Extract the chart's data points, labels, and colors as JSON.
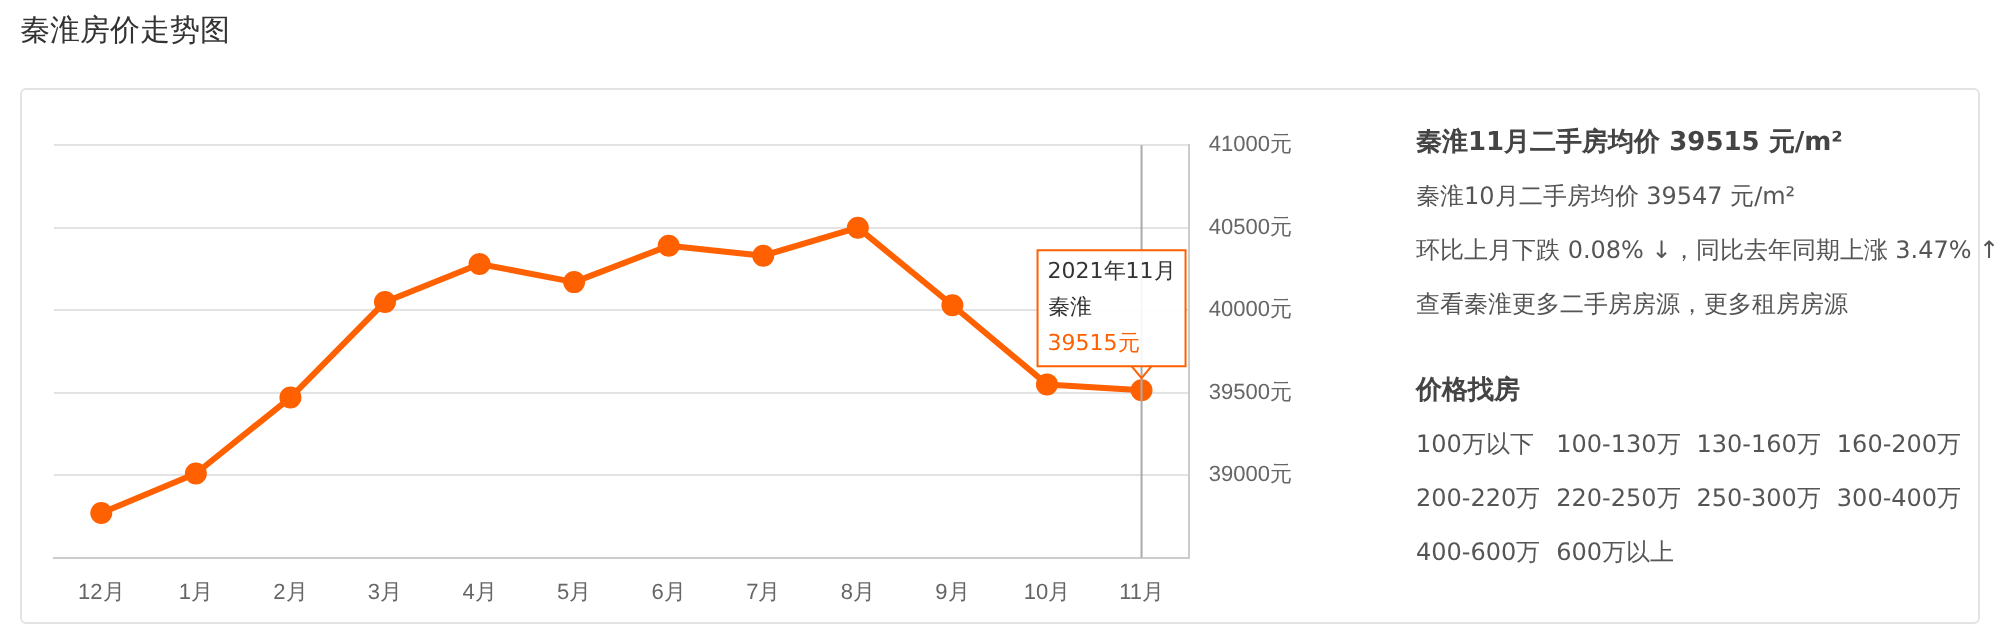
{
  "chart_data": [
    {
      "type": "line",
      "title": "秦淮房价走势图",
      "categories": [
        "12月",
        "1月",
        "2月",
        "3月",
        "4月",
        "5月",
        "6月",
        "7月",
        "8月",
        "9月",
        "10月",
        "11月"
      ],
      "series": [
        {
          "name": "秦淮",
          "color": "#ff6000",
          "values": [
            38770,
            39010,
            39470,
            40050,
            40280,
            40170,
            40390,
            40330,
            40500,
            40030,
            39550,
            39515
          ],
          "value_labels": [
            null,
            null,
            null,
            null,
            null,
            null,
            null,
            null,
            null,
            null,
            null,
            "39515元"
          ]
        }
      ],
      "ylim": [
        38500,
        41000
      ],
      "yticks": [
        {
          "value": 39000,
          "label": "39000元"
        },
        {
          "value": 39500,
          "label": "39500元"
        },
        {
          "value": 40000,
          "label": "40000元"
        },
        {
          "value": 40500,
          "label": "40500元"
        },
        {
          "value": 41000,
          "label": "41000元"
        }
      ],
      "grid": "y",
      "marker": "circle",
      "legend": false,
      "ref_lines": [
        {
          "axis": "x",
          "value": "11月",
          "color": "#aaaaaa"
        }
      ],
      "annotations": [
        "2021年11月"
      ]
    },
    {
      "type": "other",
      "title": "秦淮11月二手房均价 39515 元/m²",
      "annotations": [
        "秦淮10月二手房均价 39547 元/m²",
        "环比上月下跌 0.08% ↓，同比去年同期上涨 3.47% ↑",
        "查看秦淮更多二手房房源，更多租房房源"
      ]
    },
    {
      "type": "other",
      "title": "价格找房",
      "annotations": [
        "100万以下",
        "100-130万",
        "130-160万",
        "160-200万",
        "200-220万",
        "220-250万",
        "250-300万",
        "300-400万",
        "400-600万",
        "600万以上"
      ]
    }
  ]
}
